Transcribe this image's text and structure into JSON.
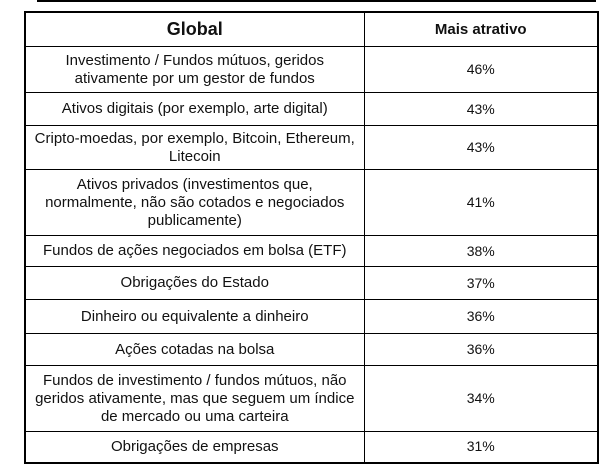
{
  "chart_data": {
    "type": "table",
    "columns": [
      {
        "key": "global",
        "label": "Global"
      },
      {
        "key": "mais_atrativo",
        "label": "Mais atrativo"
      }
    ],
    "rows": [
      {
        "label": "Investimento / Fundos mútuos, geridos ativamente por um gestor de fundos",
        "value": "46%"
      },
      {
        "label": "Ativos digitais (por exemplo, arte digital)",
        "value": "43%"
      },
      {
        "label": "Cripto-moedas, por exemplo, Bitcoin, Ethereum, Litecoin",
        "value": "43%"
      },
      {
        "label": "Ativos privados (investimentos que, normalmente, não são cotados e negociados publicamente)",
        "value": "41%"
      },
      {
        "label": "Fundos de ações negociados em bolsa (ETF)",
        "value": "38%"
      },
      {
        "label": "Obrigações do Estado",
        "value": "37%"
      },
      {
        "label": "Dinheiro ou equivalente a dinheiro",
        "value": "36%"
      },
      {
        "label": "Ações cotadas na bolsa",
        "value": "36%"
      },
      {
        "label": "Fundos de investimento / fundos mútuos, não geridos ativamente, mas que seguem um índice de mercado ou uma carteira",
        "value": "34%"
      },
      {
        "label": "Obrigações de empresas",
        "value": "31%"
      }
    ]
  },
  "colors": {
    "border": "#000000",
    "text": "#111111",
    "background": "#ffffff"
  }
}
